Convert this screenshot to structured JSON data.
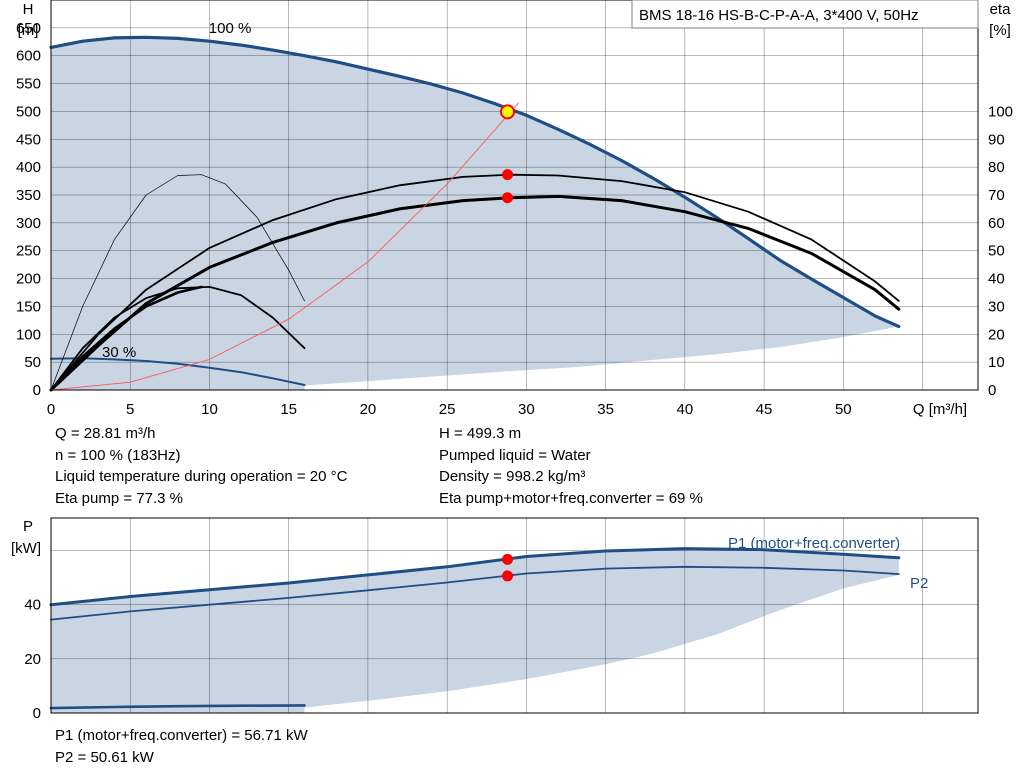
{
  "chart_data": [
    {
      "type": "line",
      "title": "BMS 18-16 HS-B-C-P-A-A, 3*400 V, 50Hz",
      "ylabel": [
        "H",
        "[m]"
      ],
      "y2label": [
        "eta",
        "[%]"
      ],
      "xlabel": "Q [m³/h]",
      "xlim": [
        0,
        58.5
      ],
      "ylim": [
        0,
        700
      ],
      "y2lim": [
        0,
        140
      ],
      "x_ticks": [
        0,
        5,
        10,
        15,
        20,
        25,
        30,
        35,
        40,
        45,
        50
      ],
      "y_ticks": [
        0,
        50,
        100,
        150,
        200,
        250,
        300,
        350,
        400,
        450,
        500,
        550,
        600,
        650
      ],
      "y2_ticks": [
        0,
        10,
        20,
        30,
        40,
        50,
        60,
        70,
        80,
        90,
        100
      ],
      "grid": true,
      "annotations": [
        {
          "text": "100 %",
          "x": 11.3,
          "y": 650
        },
        {
          "text": "30 %",
          "x": 4.3,
          "y": 68
        }
      ],
      "series": [
        {
          "role": "area-upper",
          "axis": "y",
          "x": [
            0,
            2,
            4,
            6,
            8,
            10,
            12,
            14,
            16,
            18,
            20,
            22,
            24,
            26,
            28,
            30,
            32,
            34,
            36,
            38,
            40,
            42,
            44,
            46,
            48,
            50,
            52,
            53.5
          ],
          "values": [
            615,
            626,
            632,
            633,
            631,
            626,
            619,
            610,
            600,
            589,
            576,
            563,
            549,
            533,
            514,
            493,
            468,
            441,
            412,
            380,
            346,
            310,
            272,
            233,
            199,
            166,
            133,
            114
          ]
        },
        {
          "role": "area-lower",
          "axis": "y",
          "x": [
            16,
            20,
            25,
            29,
            33,
            38,
            42,
            46,
            50,
            53.5
          ],
          "values": [
            8,
            16,
            26,
            34,
            41,
            54,
            64,
            77,
            95,
            114
          ]
        },
        {
          "role": "h-100",
          "axis": "y",
          "x": [
            0,
            2,
            4,
            6,
            8,
            10,
            12,
            14,
            16,
            18,
            20,
            22,
            24,
            26,
            28,
            30,
            32,
            34,
            36,
            38,
            40,
            42,
            44,
            46,
            48,
            50,
            52,
            53.5
          ],
          "values": [
            615,
            626,
            632,
            633,
            631,
            626,
            619,
            610,
            600,
            589,
            576,
            563,
            549,
            533,
            514,
            493,
            468,
            441,
            412,
            380,
            346,
            310,
            272,
            233,
            199,
            166,
            133,
            114
          ]
        },
        {
          "role": "h-30",
          "axis": "y",
          "x": [
            0,
            2,
            4,
            6,
            8,
            10,
            12,
            14,
            16
          ],
          "values": [
            56,
            57,
            55,
            52,
            47,
            40,
            32,
            21,
            9
          ]
        },
        {
          "role": "eta-pump",
          "axis": "y2",
          "x": [
            0,
            3,
            6,
            10,
            14,
            18,
            22,
            26,
            29,
            32,
            36,
            40,
            44,
            48,
            52,
            53.5
          ],
          "values": [
            0,
            20,
            36,
            51,
            61,
            68.5,
            73.5,
            76.5,
            77.3,
            77,
            75,
            71,
            64,
            54,
            39,
            32
          ]
        },
        {
          "role": "eta-total",
          "axis": "y2",
          "x": [
            0,
            3,
            6,
            10,
            14,
            18,
            22,
            26,
            29,
            32,
            36,
            40,
            44,
            48,
            52,
            53.5
          ],
          "values": [
            0,
            16,
            31,
            44,
            53,
            60,
            65,
            68,
            69,
            69.5,
            68,
            64,
            58,
            49,
            36,
            29
          ]
        },
        {
          "role": "eta-30-thin",
          "axis": "y2",
          "x": [
            0,
            2,
            4,
            6,
            8,
            9.5,
            11,
            13,
            15,
            16
          ],
          "values": [
            0,
            30,
            54,
            70,
            77,
            77.3,
            74,
            62,
            43,
            32
          ]
        },
        {
          "role": "eta-30-pump",
          "axis": "y2",
          "x": [
            0,
            2,
            4,
            6,
            8,
            10,
            12,
            14,
            16
          ],
          "values": [
            0,
            15,
            26,
            33,
            36.5,
            37,
            34,
            26,
            15
          ]
        },
        {
          "role": "eta-30-total",
          "axis": "y2",
          "x": [
            0,
            2,
            4,
            6,
            8,
            9.5
          ],
          "values": [
            0,
            12,
            22,
            30,
            35,
            37
          ]
        },
        {
          "role": "system-curve",
          "axis": "y",
          "x": [
            0,
            5,
            10,
            15,
            20,
            25,
            29.5
          ],
          "values": [
            0,
            14,
            55,
            127,
            230,
            370,
            515
          ]
        }
      ],
      "markers": [
        {
          "x": 28.81,
          "y": 499.3,
          "axis": "y",
          "style": "duty-point"
        },
        {
          "x": 28.81,
          "y": 77.3,
          "axis": "y2",
          "style": "point"
        },
        {
          "x": 28.81,
          "y": 69,
          "axis": "y2",
          "style": "point"
        }
      ]
    },
    {
      "type": "line",
      "ylabel": [
        "P",
        "[kW]"
      ],
      "xlim": [
        0,
        58.5
      ],
      "ylim": [
        0,
        72
      ],
      "y_ticks": [
        0,
        20,
        40
      ],
      "grid": true,
      "series": [
        {
          "role": "area-upper",
          "x": [
            0,
            5,
            10,
            15,
            20,
            25,
            30,
            35,
            40,
            45,
            50,
            53.5
          ],
          "values": [
            40,
            43,
            45.5,
            48,
            51,
            54,
            57.8,
            59.8,
            60.7,
            60.3,
            58.6,
            57.3
          ]
        },
        {
          "role": "area-lower",
          "x": [
            16,
            20,
            25,
            30,
            35,
            38,
            42,
            46,
            50,
            53.5
          ],
          "values": [
            2,
            4.5,
            8,
            12.5,
            18,
            22,
            29,
            38,
            46,
            51
          ]
        },
        {
          "name": "P1 (motor+freq.converter)",
          "x": [
            0,
            5,
            10,
            15,
            20,
            25,
            30,
            35,
            40,
            45,
            50,
            53.5
          ],
          "values": [
            40,
            43,
            45.5,
            48,
            51,
            54,
            57.8,
            59.8,
            60.7,
            60.3,
            58.6,
            57.3
          ]
        },
        {
          "name": "P2",
          "x": [
            0,
            5,
            10,
            15,
            20,
            25,
            30,
            35,
            40,
            45,
            50,
            53.5
          ],
          "values": [
            34.5,
            37.5,
            40,
            42.5,
            45.3,
            48.2,
            51.5,
            53.3,
            54,
            53.6,
            52.6,
            51.3
          ]
        },
        {
          "role": "p-30",
          "x": [
            0,
            4,
            8,
            12,
            16
          ],
          "values": [
            1.8,
            2.2,
            2.5,
            2.7,
            2.8
          ]
        }
      ],
      "markers": [
        {
          "x": 28.81,
          "y": 56.71
        },
        {
          "x": 28.81,
          "y": 50.61
        }
      ]
    }
  ],
  "info_left": [
    "Q = 28.81 m³/h",
    "n = 100 % (183Hz)",
    "Liquid temperature during operation = 20 °C",
    "Eta pump = 77.3 %"
  ],
  "info_right": [
    "H = 499.3 m",
    "Pumped liquid = Water",
    "Density = 998.2 kg/m³",
    "Eta pump+motor+freq.converter = 69 %"
  ],
  "info_bottom": [
    "P1 (motor+freq.converter) = 56.71 kW",
    "P2 = 50.61 kW"
  ],
  "colors": {
    "area_fill": "#c9d5e3",
    "curve_blue": "#1f4e85",
    "curve_black": "#000000",
    "system_red": "#ff5a5a",
    "marker_red": "#ff0000",
    "marker_yellow": "#ffff00",
    "grid": "#000000"
  }
}
